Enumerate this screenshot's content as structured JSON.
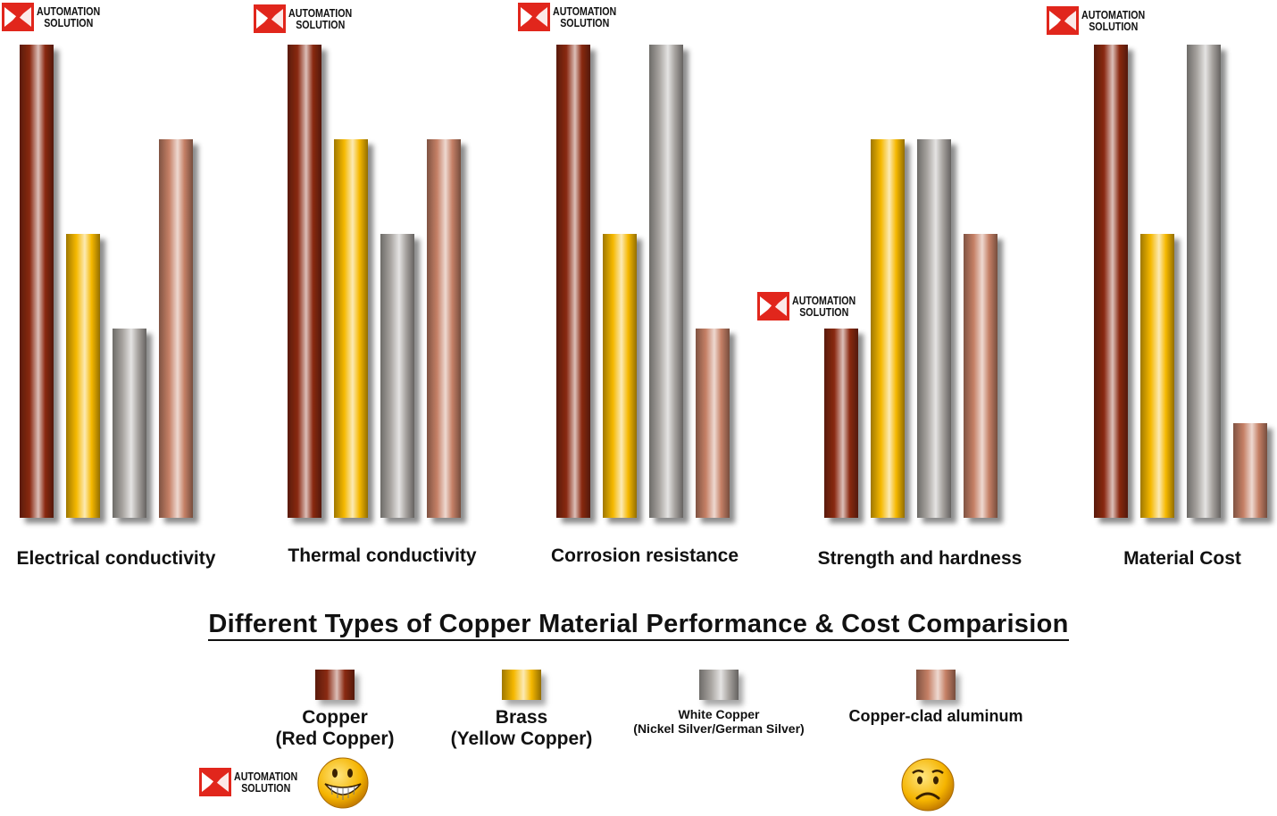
{
  "brand": {
    "line1": "AUTOMATION",
    "line2": "SOLUTION"
  },
  "title": "Different Types of Copper Material Performance & Cost Comparision",
  "colors": {
    "copper": "#8a2a12",
    "brass": "#f5b800",
    "white_copper": "#a8a4a0",
    "copper_clad_aluminum": "#c58066"
  },
  "legend": [
    {
      "key": "copper",
      "line1": "Copper",
      "line2": "(Red Copper)"
    },
    {
      "key": "brass",
      "line1": "Brass",
      "line2": "(Yellow Copper)"
    },
    {
      "key": "white_copper",
      "line1": "White Copper",
      "line2": "(Nickel Silver/German Silver)"
    },
    {
      "key": "copper_clad_aluminum",
      "line1": "Copper-clad aluminum",
      "line2": ""
    }
  ],
  "faces": [
    {
      "icon": "grinning-face-icon",
      "meaning": "positive"
    },
    {
      "icon": "worried-face-icon",
      "meaning": "negative"
    }
  ],
  "chart_data": {
    "type": "bar",
    "categories": [
      "Electrical conductivity",
      "Thermal conductivity",
      "Corrosion resistance",
      "Strength and hardness",
      "Material Cost"
    ],
    "series": [
      {
        "name": "Copper (Red Copper)",
        "key": "copper",
        "values": [
          5,
          5,
          5,
          2,
          5
        ]
      },
      {
        "name": "Brass (Yellow Copper)",
        "key": "brass",
        "values": [
          3,
          4,
          3,
          4,
          3
        ]
      },
      {
        "name": "White Copper (Nickel Silver/German Silver)",
        "key": "white_copper",
        "values": [
          2,
          3,
          5,
          4,
          5
        ]
      },
      {
        "name": "Copper-clad aluminum",
        "key": "copper_clad_aluminum",
        "values": [
          4,
          4,
          2,
          3,
          1
        ]
      }
    ],
    "ylim": [
      0,
      5
    ],
    "grid": false,
    "legend_position": "bottom"
  }
}
